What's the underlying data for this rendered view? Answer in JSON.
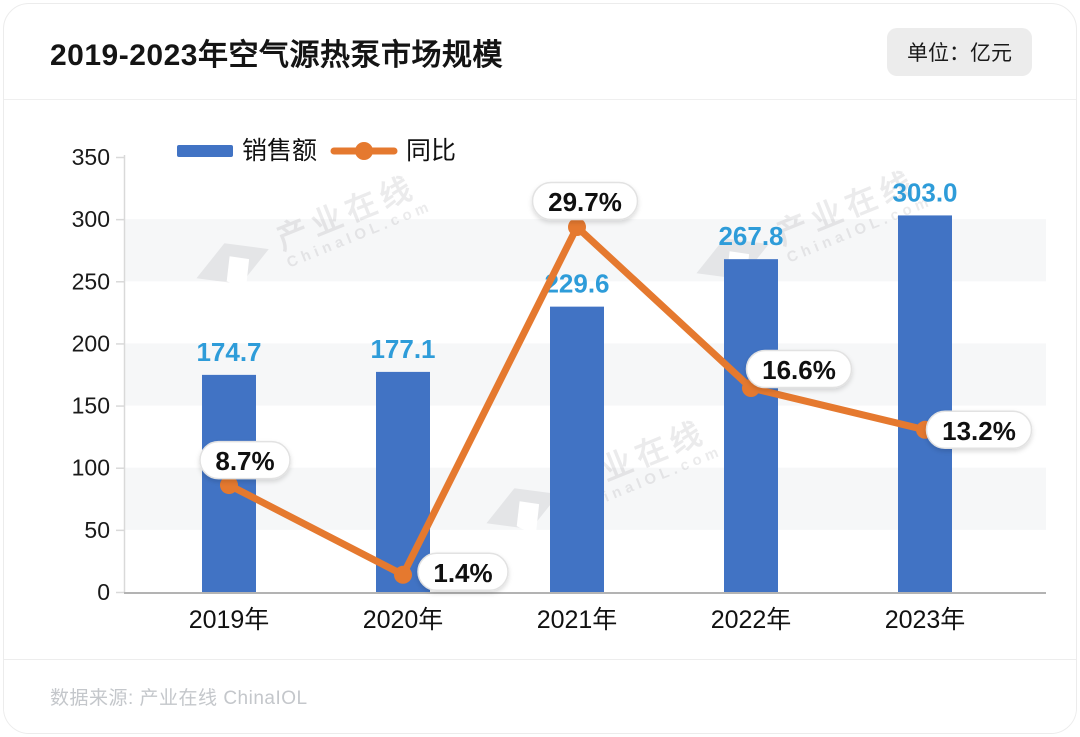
{
  "header": {
    "title": "2019-2023年空气源热泵市场规模",
    "unit_badge": "单位：亿元"
  },
  "legend": [
    {
      "label": "销售额",
      "type": "bar"
    },
    {
      "label": "同比",
      "type": "line"
    }
  ],
  "chart_data": {
    "type": "bar",
    "title": "2019-2023年空气源热泵市场规模",
    "categories": [
      "2019年",
      "2020年",
      "2021年",
      "2022年",
      "2023年"
    ],
    "series": [
      {
        "name": "销售额",
        "type": "bar",
        "unit": "亿元",
        "values": [
          174.7,
          177.1,
          229.6,
          267.8,
          303.0
        ]
      },
      {
        "name": "同比",
        "type": "line",
        "unit": "%",
        "values": [
          8.7,
          1.4,
          29.7,
          16.6,
          13.2
        ]
      }
    ],
    "xlabel": "",
    "ylabel": "",
    "y_ticks": [
      0,
      50,
      100,
      150,
      200,
      250,
      300,
      350
    ],
    "ylim": [
      0,
      350
    ],
    "y2lim": [
      0,
      35.4
    ],
    "grid": "alternating-horizontal-bands",
    "legend_position": "top-left"
  },
  "colors": {
    "bar": "#4173C4",
    "bar_label": "#2E9CD9",
    "line": "#E5792F",
    "band": "#f6f7f8",
    "axis_left": "#d9d9d9",
    "axis_bottom": "#b3b3b3",
    "bubble_border": "#e2e2e2",
    "bubble_text": "#101010",
    "tick_text": "#1a1a1a"
  },
  "watermark": {
    "brand": "产业在线",
    "domain": "ChinaIOL.com"
  },
  "footer": {
    "source": "数据来源: 产业在线 ChinaIOL"
  }
}
